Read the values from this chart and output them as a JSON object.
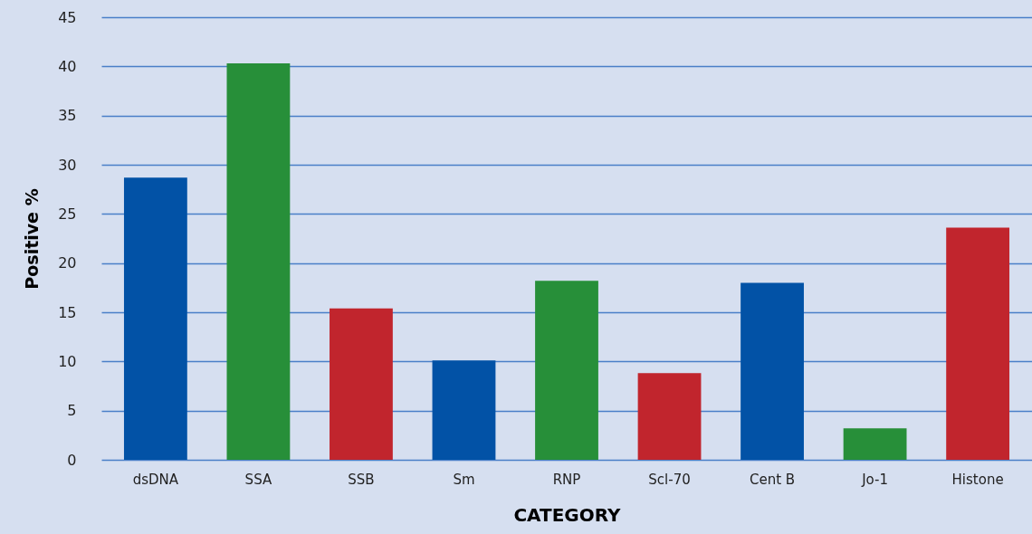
{
  "chart_data": {
    "type": "bar",
    "xlabel": "CATEGORY",
    "ylabel": "Positive %",
    "categories": [
      "dsDNA",
      "SSA",
      "SSB",
      "Sm",
      "RNP",
      "Scl-70",
      "Cent B",
      "Jo-1",
      "Histone"
    ],
    "values": [
      28.7,
      40.3,
      15.4,
      10.1,
      18.2,
      8.8,
      18.0,
      3.2,
      23.6
    ],
    "colors": [
      "#0252a6",
      "#278f39",
      "#c1252d",
      "#0252a6",
      "#278f39",
      "#c1252d",
      "#0252a6",
      "#278f39",
      "#c1252d"
    ],
    "ylim": [
      0,
      45
    ],
    "yticks": [
      0,
      5,
      10,
      15,
      20,
      25,
      30,
      35,
      40,
      45
    ],
    "grid": "y"
  }
}
